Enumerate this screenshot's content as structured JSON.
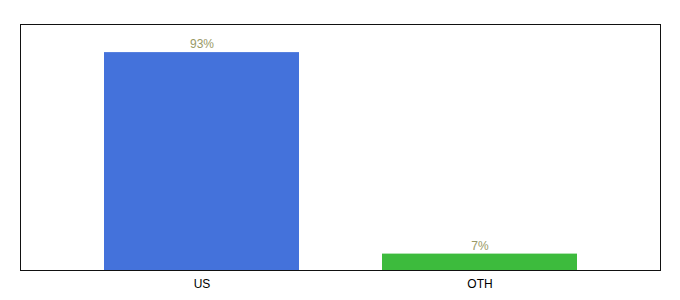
{
  "chart_data": {
    "type": "bar",
    "categories": [
      "US",
      "OTH"
    ],
    "values": [
      93,
      7
    ],
    "colors": [
      "#4472db",
      "#3dbb3d"
    ],
    "value_labels": [
      "93%",
      "7%"
    ],
    "data_labels": true,
    "ylim": [
      0,
      105
    ],
    "yticks": [],
    "tick_labels": "x",
    "grid": false
  }
}
